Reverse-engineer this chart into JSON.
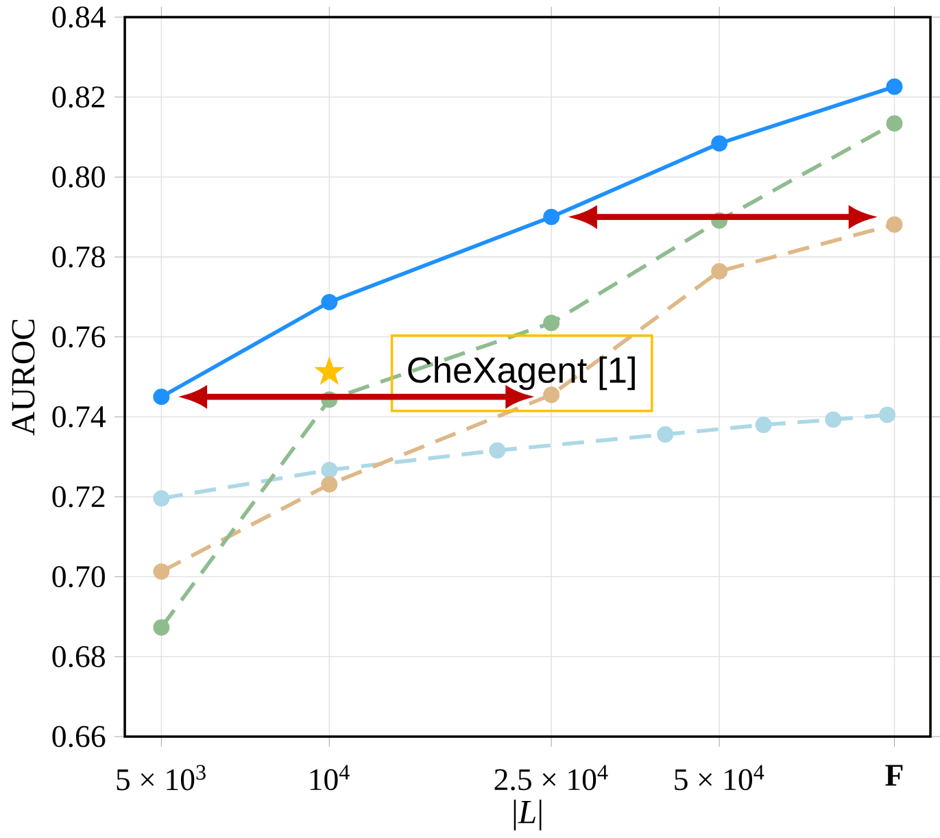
{
  "chart_data": {
    "type": "line",
    "xlabel": "|*L*|",
    "ylabel": "AUROC",
    "x": [
      5000,
      10000,
      25000,
      50000,
      103000
    ],
    "log": "x",
    "xlim": [
      4300,
      119500
    ],
    "xticks": [
      {
        "value": 5000,
        "label": "5 × 10$^{3}$"
      },
      {
        "value": 10000,
        "label": "10$^{4}$"
      },
      {
        "value": 25000,
        "label": "2.5 × 10$^{4}$"
      },
      {
        "value": 50000,
        "label": "5 × 10$^{4}$"
      },
      {
        "value": 103000,
        "label": "**F**"
      }
    ],
    "ylim": [
      0.66,
      0.84
    ],
    "yticks": [
      {
        "value": 0.66,
        "label": "0.66"
      },
      {
        "value": 0.68,
        "label": "0.68"
      },
      {
        "value": 0.7,
        "label": "0.70"
      },
      {
        "value": 0.72,
        "label": "0.72"
      },
      {
        "value": 0.74,
        "label": "0.74"
      },
      {
        "value": 0.76,
        "label": "0.76"
      },
      {
        "value": 0.78,
        "label": "0.78"
      },
      {
        "value": 0.8,
        "label": "0.80"
      },
      {
        "value": 0.82,
        "label": "0.82"
      },
      {
        "value": 0.84,
        "label": "0.84"
      }
    ],
    "grid": true,
    "marker": "circle",
    "series": [
      {
        "color": "#add8e6",
        "line_style": "dashed",
        "x": [
          5000,
          10000,
          20000,
          40000,
          60000,
          80000,
          100000
        ],
        "values": [
          0.7196,
          0.7267,
          0.7316,
          0.7356,
          0.738,
          0.7393,
          0.7405
        ]
      },
      {
        "color": "#deb887",
        "line_style": "dashed",
        "values": [
          0.7013,
          0.7231,
          0.7455,
          0.7764,
          0.7881
        ]
      },
      {
        "color": "#8fbc8f",
        "line_style": "dashed",
        "values": [
          0.6873,
          0.7443,
          0.7635,
          0.7891,
          0.8134
        ]
      },
      {
        "color": "#1e90ff",
        "line_style": "solid",
        "values": [
          0.745,
          0.7687,
          0.79,
          0.8084,
          0.8226
        ]
      },
      {
        "type": "scatter",
        "marker": "star",
        "color": "#ffc000",
        "x": [
          10000
        ],
        "values": [
          0.7512
        ]
      }
    ],
    "annotations": [
      "CheXagent [1]"
    ]
  }
}
